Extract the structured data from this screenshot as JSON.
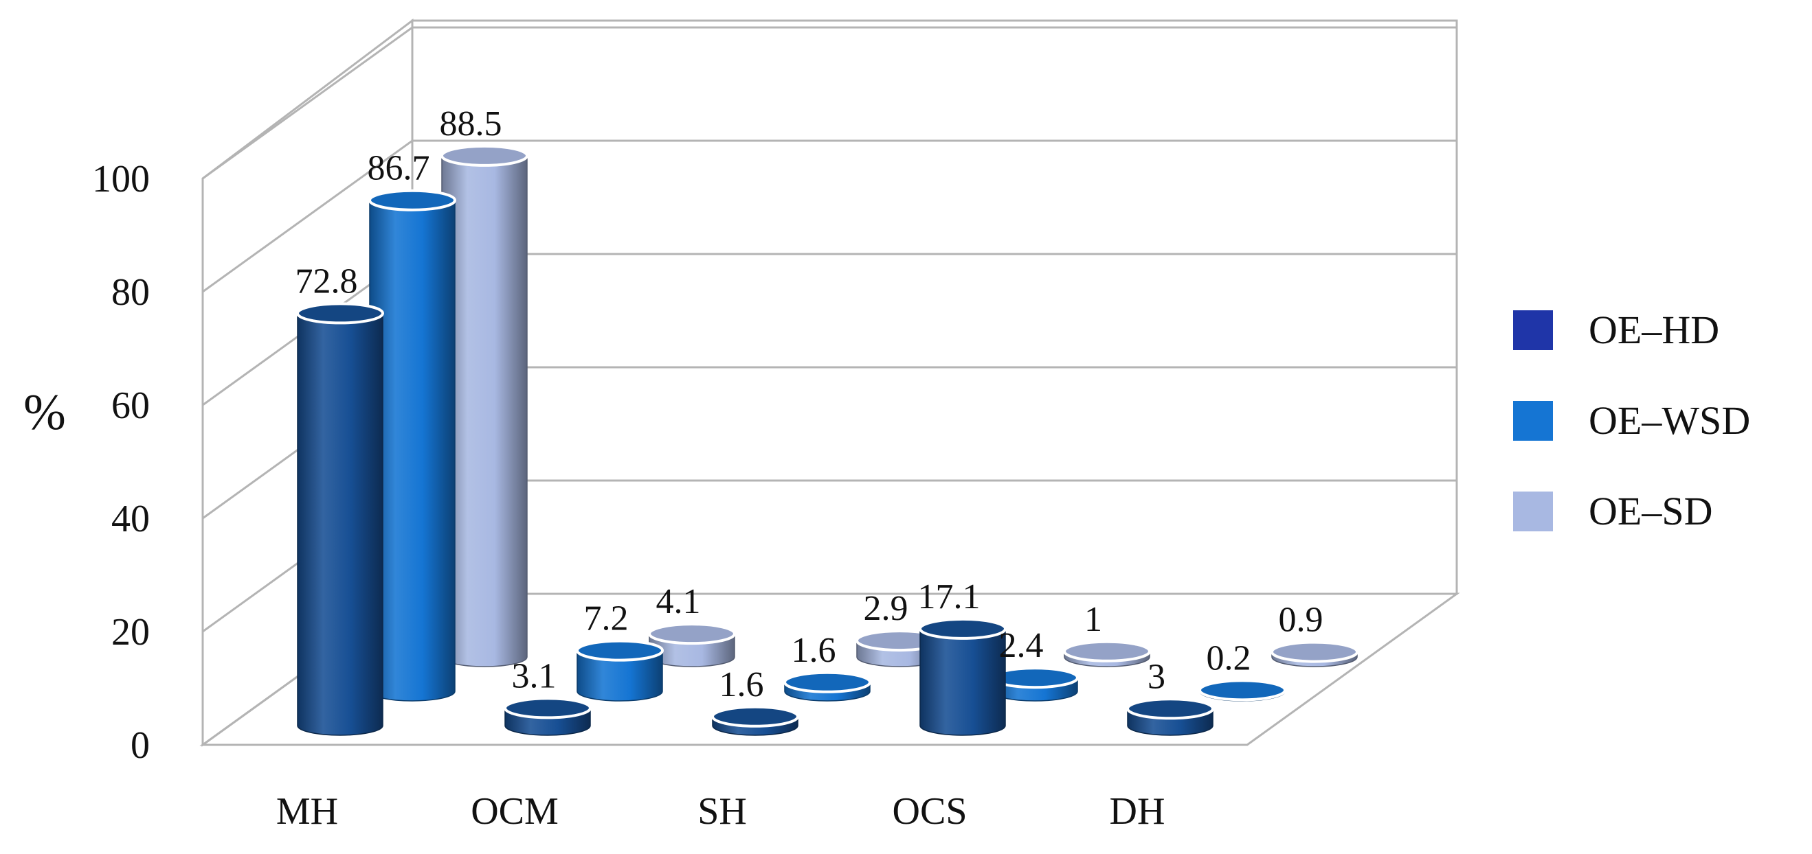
{
  "chart_data": {
    "type": "bar",
    "style": "3d-cylinder",
    "categories": [
      "MH",
      "OCM",
      "SH",
      "OCS",
      "DH"
    ],
    "series": [
      {
        "name": "OE–HD",
        "values": [
          72.8,
          3.1,
          1.6,
          17.1,
          3
        ],
        "color": "#174f94"
      },
      {
        "name": "OE–WSD",
        "values": [
          86.7,
          7.2,
          1.6,
          2.4,
          0.2
        ],
        "color": "#1575d3"
      },
      {
        "name": "OE–SD",
        "values": [
          88.5,
          4.1,
          2.9,
          1,
          0.9
        ],
        "color": "#a8b8e2"
      }
    ],
    "data_labels": [
      [
        "72.8",
        "3.1",
        "1.6",
        "17.1",
        "3"
      ],
      [
        "86.7",
        "7.2",
        "1.6",
        "2.4",
        "0.2"
      ],
      [
        "88.5",
        "4.1",
        "2.9",
        "1",
        "0.9"
      ]
    ],
    "y_ticks": [
      "0",
      "20",
      "40",
      "60",
      "80",
      "100"
    ],
    "title": "",
    "xlabel": "",
    "ylabel": "%",
    "ylim": [
      0,
      100
    ],
    "grid": true,
    "legend_position": "right"
  },
  "legend": {
    "swatch_colors": [
      "#1f35a8",
      "#1575d3",
      "#a8b8e2"
    ]
  }
}
